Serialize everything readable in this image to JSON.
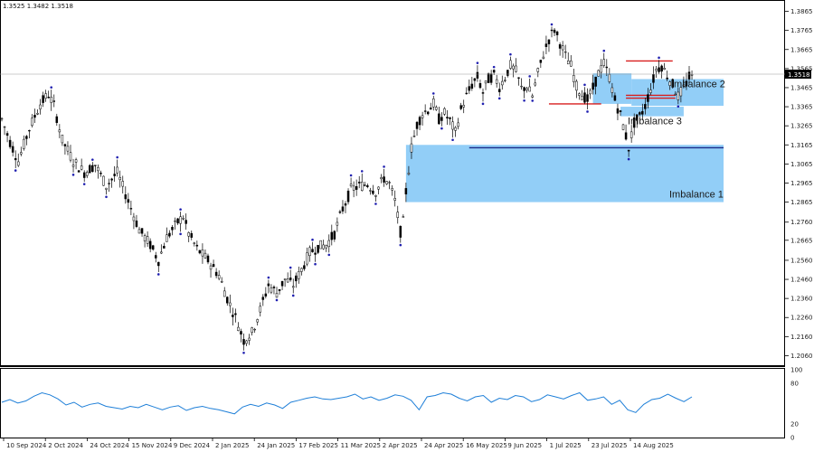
{
  "header": {
    "ohlc_text": "1.3525 1.3482 1.3518"
  },
  "current_price_label": "1.3518",
  "chart_data": {
    "type": "candlestick",
    "price_axis": {
      "ylim": [
        1.201,
        1.3915
      ],
      "ticks": [
        "1.3865",
        "1.3765",
        "1.3665",
        "1.3565",
        "1.3465",
        "1.3365",
        "1.3265",
        "1.3165",
        "1.3065",
        "1.2965",
        "1.2865",
        "1.2760",
        "1.2665",
        "1.2560",
        "1.2460",
        "1.2360",
        "1.2260",
        "1.2160",
        "1.2060"
      ]
    },
    "time_axis": {
      "ticks": [
        "10 Sep 2024",
        "2 Oct 2024",
        "24 Oct 2024",
        "15 Nov 2024",
        "9 Dec 2024",
        "2 Jan 2025",
        "24 Jan 2025",
        "17 Feb 2025",
        "11 Mar 2025",
        "2 Apr 2025",
        "24 Apr 2025",
        "16 May 2025",
        "9 Jun 2025",
        "1 Jul 2025",
        "23 Jul 2025",
        "14 Aug 2025"
      ]
    },
    "price_path": [
      [
        0,
        1.33
      ],
      [
        3,
        1.318
      ],
      [
        6,
        1.308
      ],
      [
        10,
        1.325
      ],
      [
        14,
        1.338
      ],
      [
        17,
        1.343
      ],
      [
        19,
        1.337
      ],
      [
        22,
        1.319
      ],
      [
        26,
        1.308
      ],
      [
        30,
        1.302
      ],
      [
        34,
        1.306
      ],
      [
        38,
        1.295
      ],
      [
        42,
        1.302
      ],
      [
        46,
        1.287
      ],
      [
        50,
        1.272
      ],
      [
        54,
        1.264
      ],
      [
        57,
        1.256
      ],
      [
        60,
        1.268
      ],
      [
        64,
        1.276
      ],
      [
        66,
        1.279
      ],
      [
        68,
        1.27
      ],
      [
        71,
        1.262
      ],
      [
        75,
        1.256
      ],
      [
        79,
        1.248
      ],
      [
        82,
        1.236
      ],
      [
        85,
        1.226
      ],
      [
        88,
        1.214
      ],
      [
        91,
        1.218
      ],
      [
        94,
        1.23
      ],
      [
        97,
        1.243
      ],
      [
        100,
        1.239
      ],
      [
        103,
        1.246
      ],
      [
        106,
        1.243
      ],
      [
        109,
        1.251
      ],
      [
        112,
        1.26
      ],
      [
        115,
        1.263
      ],
      [
        118,
        1.264
      ],
      [
        121,
        1.27
      ],
      [
        124,
        1.283
      ],
      [
        127,
        1.293
      ],
      [
        130,
        1.295
      ],
      [
        133,
        1.296
      ],
      [
        136,
        1.292
      ],
      [
        139,
        1.299
      ],
      [
        141,
        1.296
      ],
      [
        143,
        1.287
      ],
      [
        145,
        1.271
      ],
      [
        146,
        1.276
      ],
      [
        147,
        1.292
      ],
      [
        149,
        1.315
      ],
      [
        151,
        1.327
      ],
      [
        153,
        1.333
      ],
      [
        155,
        1.335
      ],
      [
        157,
        1.338
      ],
      [
        159,
        1.33
      ],
      [
        161,
        1.333
      ],
      [
        163,
        1.329
      ],
      [
        165,
        1.323
      ],
      [
        167,
        1.335
      ],
      [
        169,
        1.342
      ],
      [
        171,
        1.348
      ],
      [
        173,
        1.352
      ],
      [
        175,
        1.344
      ],
      [
        177,
        1.351
      ],
      [
        179,
        1.353
      ],
      [
        181,
        1.347
      ],
      [
        183,
        1.352
      ],
      [
        185,
        1.358
      ],
      [
        187,
        1.355
      ],
      [
        189,
        1.346
      ],
      [
        191,
        1.347
      ],
      [
        193,
        1.342
      ],
      [
        195,
        1.354
      ],
      [
        197,
        1.364
      ],
      [
        199,
        1.372
      ],
      [
        201,
        1.377
      ],
      [
        203,
        1.37
      ],
      [
        205,
        1.363
      ],
      [
        207,
        1.358
      ],
      [
        209,
        1.347
      ],
      [
        211,
        1.343
      ],
      [
        213,
        1.34
      ],
      [
        215,
        1.346
      ],
      [
        217,
        1.354
      ],
      [
        219,
        1.359
      ],
      [
        221,
        1.352
      ],
      [
        223,
        1.34
      ],
      [
        225,
        1.332
      ],
      [
        227,
        1.321
      ],
      [
        228,
        1.315
      ],
      [
        230,
        1.328
      ],
      [
        232,
        1.331
      ],
      [
        234,
        1.337
      ],
      [
        236,
        1.346
      ],
      [
        238,
        1.356
      ],
      [
        240,
        1.358
      ],
      [
        242,
        1.353
      ],
      [
        244,
        1.348
      ],
      [
        246,
        1.342
      ],
      [
        248,
        1.346
      ],
      [
        250,
        1.352
      ],
      [
        251,
        1.3518
      ]
    ],
    "indicator": {
      "ylim": [
        0,
        100
      ],
      "ticks": [
        "100",
        "80",
        "20",
        "0"
      ],
      "values": [
        52,
        56,
        51,
        54,
        61,
        66,
        63,
        57,
        48,
        52,
        45,
        49,
        51,
        46,
        44,
        42,
        46,
        44,
        49,
        45,
        41,
        45,
        47,
        40,
        44,
        46,
        43,
        41,
        38,
        35,
        45,
        49,
        46,
        51,
        48,
        43,
        52,
        55,
        58,
        60,
        57,
        56,
        58,
        60,
        64,
        57,
        60,
        55,
        58,
        63,
        61,
        55,
        41,
        60,
        62,
        66,
        64,
        58,
        54,
        60,
        62,
        52,
        58,
        56,
        62,
        60,
        53,
        56,
        63,
        60,
        57,
        62,
        66,
        55,
        57,
        60,
        49,
        55,
        41,
        37,
        49,
        56,
        58,
        64,
        58,
        53,
        60
      ]
    },
    "horizontal_lines": [
      {
        "color": "#d81e1e",
        "price": 1.3605,
        "from": 227,
        "to": 244
      },
      {
        "color": "#d81e1e",
        "price": 1.338,
        "from": 199,
        "to": 218
      },
      {
        "color": "#d81e1e",
        "price": 1.3425,
        "from": 227,
        "to": 245
      },
      {
        "color": "#d81e1e",
        "price": 1.341,
        "from": 227,
        "to": 245
      },
      {
        "color": "#1b2a88",
        "price": 1.315,
        "from": 170,
        "to": 290
      }
    ],
    "zones": [
      {
        "name": "Imbalance 1",
        "color": "#86c9f6",
        "price_top": 1.3165,
        "price_bottom": 1.2865,
        "from": 147,
        "to": 290
      },
      {
        "name": "Imbalance 2",
        "color": "#86c9f6",
        "price_top": 1.351,
        "price_bottom": 1.337,
        "from": 229,
        "to": 272
      },
      {
        "name": "Imbalance 3",
        "color": "#86c9f6",
        "price_top": 1.3365,
        "price_bottom": 1.3315,
        "from": 225,
        "to": 248
      },
      {
        "name": "",
        "color": "#86c9f6",
        "price_top": 1.354,
        "price_bottom": 1.338,
        "from": 215,
        "to": 229
      }
    ]
  }
}
